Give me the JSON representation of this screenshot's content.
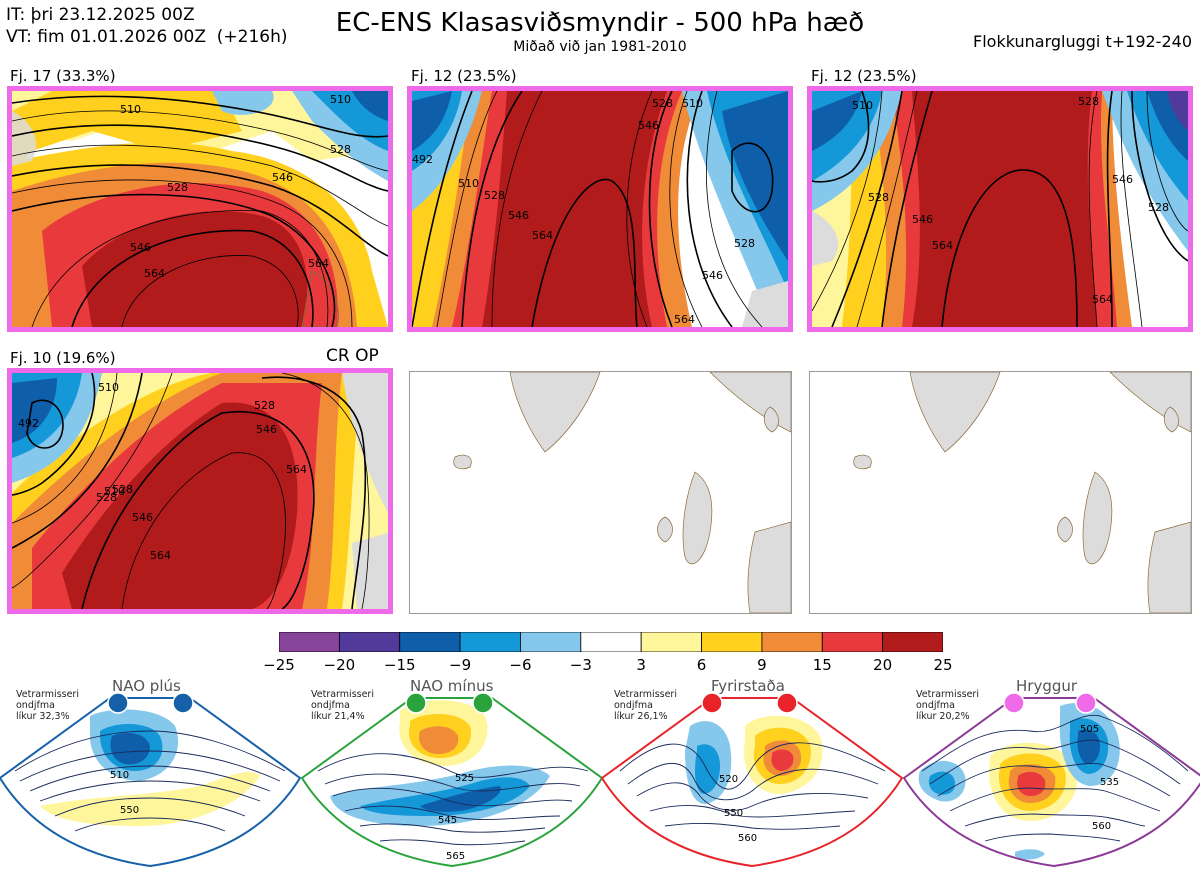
{
  "header": {
    "init_time": "IT: þri 23.12.2025 00Z",
    "valid_time": "VT: fim 01.01.2026 00Z  (+216h)",
    "title": "EC-ENS Klasasviðsmyndir - 500 hPa hæð",
    "subtitle": "Miðað við jan 1981-2010",
    "window": "Flokkunargluggi t+192-240"
  },
  "panels": [
    {
      "label": "Fj. 17 (33.3%)",
      "contours": [
        "510",
        "528",
        "546",
        "546",
        "564",
        "564",
        "528",
        "510"
      ]
    },
    {
      "label": "Fj. 12 (23.5%)",
      "contours": [
        "492",
        "510",
        "528",
        "546",
        "564",
        "546",
        "528",
        "528",
        "510",
        "546",
        "564"
      ]
    },
    {
      "label": "Fj. 12 (23.5%)",
      "contours": [
        "528",
        "510",
        "528",
        "546",
        "564",
        "546",
        "528",
        "564"
      ]
    },
    {
      "label": "Fj. 10 (19.6%)",
      "contours": [
        "492",
        "510",
        "528",
        "528",
        "546",
        "564",
        "564",
        "546",
        "528",
        "510"
      ]
    }
  ],
  "crop_label": "CR OP",
  "colorbar": {
    "colors": [
      "#86449b",
      "#513a9a",
      "#0e5ea9",
      "#1498d8",
      "#85c8ec",
      "#ffffff",
      "#fff59b",
      "#ffd11e",
      "#f08b38",
      "#e83a3c",
      "#b11b1b"
    ],
    "ticks": [
      "−25",
      "−20",
      "−15",
      "−9",
      "−6",
      "−3",
      "3",
      "6",
      "9",
      "15",
      "20",
      "25"
    ]
  },
  "regimes": [
    {
      "title": "NAO plús",
      "note": [
        "Vetrarmisseri",
        "ondjfma",
        "líkur 32,3%"
      ],
      "border": "#1560a8",
      "dot": "#1560a8",
      "contours": [
        "510",
        "550"
      ]
    },
    {
      "title": "NAO mínus",
      "note": [
        "Vetrarmisseri",
        "ondjfma",
        "líkur 21,4%"
      ],
      "border": "#2aa33c",
      "dot": "#2aa33c",
      "contours": [
        "525",
        "545",
        "565"
      ]
    },
    {
      "title": "Fyrirstaða",
      "note": [
        "Vetrarmisseri",
        "ondjfma",
        "líkur 26,1%"
      ],
      "border": "#e8242a",
      "dot": "#e8242a",
      "contours": [
        "520",
        "550",
        "560"
      ]
    },
    {
      "title": "Hryggur",
      "note": [
        "Vetrarmisseri",
        "ondjfma",
        "líkur 20,2%"
      ],
      "border": "#8b3a96",
      "dot": "#ee6ae8",
      "contours": [
        "505",
        "535",
        "560"
      ]
    }
  ]
}
